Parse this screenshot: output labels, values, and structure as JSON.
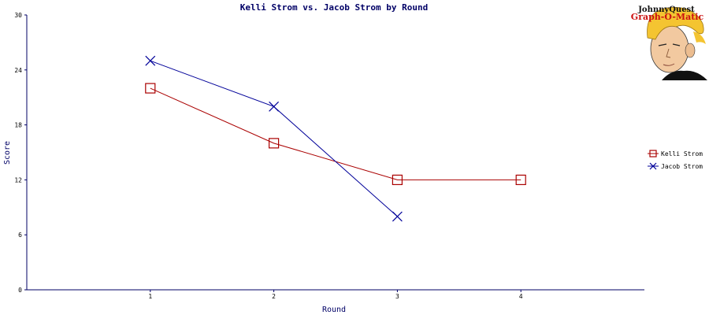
{
  "chart_data": {
    "type": "line",
    "title": "Kelli Strom vs. Jacob Strom by Round",
    "xlabel": "Round",
    "ylabel": "Score",
    "x": [
      1,
      2,
      3,
      4
    ],
    "xlim": [
      0,
      5
    ],
    "ylim": [
      0,
      30
    ],
    "yticks": [
      0,
      6,
      12,
      18,
      24,
      30
    ],
    "grid": false,
    "legend_position": "right",
    "series": [
      {
        "name": "Kelli Strom",
        "color": "#aa0000",
        "marker": "square",
        "values": [
          22,
          16,
          12,
          12
        ]
      },
      {
        "name": "Jacob Strom",
        "color": "#000099",
        "marker": "x",
        "values": [
          25,
          20,
          8,
          null
        ]
      }
    ]
  },
  "logo": {
    "line1": "JohnnyQuest",
    "line2": "Graph-O-Matic",
    "icon": "cartoon-boy-face-icon"
  }
}
